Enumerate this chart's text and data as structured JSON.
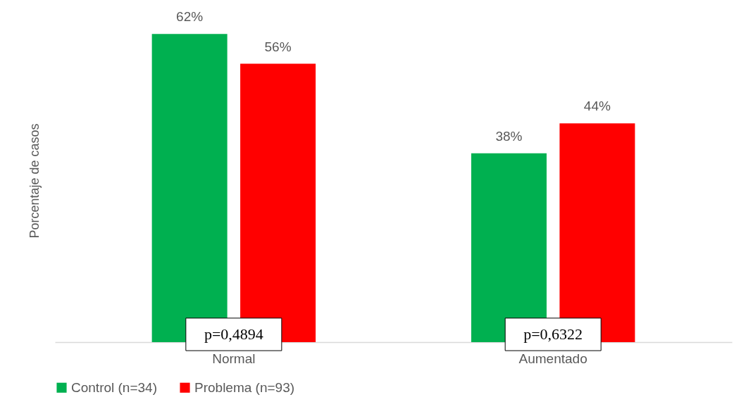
{
  "chart_data": {
    "type": "bar",
    "ylabel": "Porcentaje de casos",
    "categories": [
      "Normal",
      "Aumentado"
    ],
    "series": [
      {
        "name": "Control (n=34)",
        "color": "#00b050",
        "values": [
          62,
          38
        ],
        "value_labels": [
          "62%",
          "38%"
        ]
      },
      {
        "name": "Problema (n=93)",
        "color": "#ff0000",
        "values": [
          56,
          44
        ],
        "value_labels": [
          "56%",
          "44%"
        ]
      }
    ],
    "annotations": [
      "p=0,4894",
      "p=0,6322"
    ],
    "legend": "bottom",
    "grid": false
  }
}
